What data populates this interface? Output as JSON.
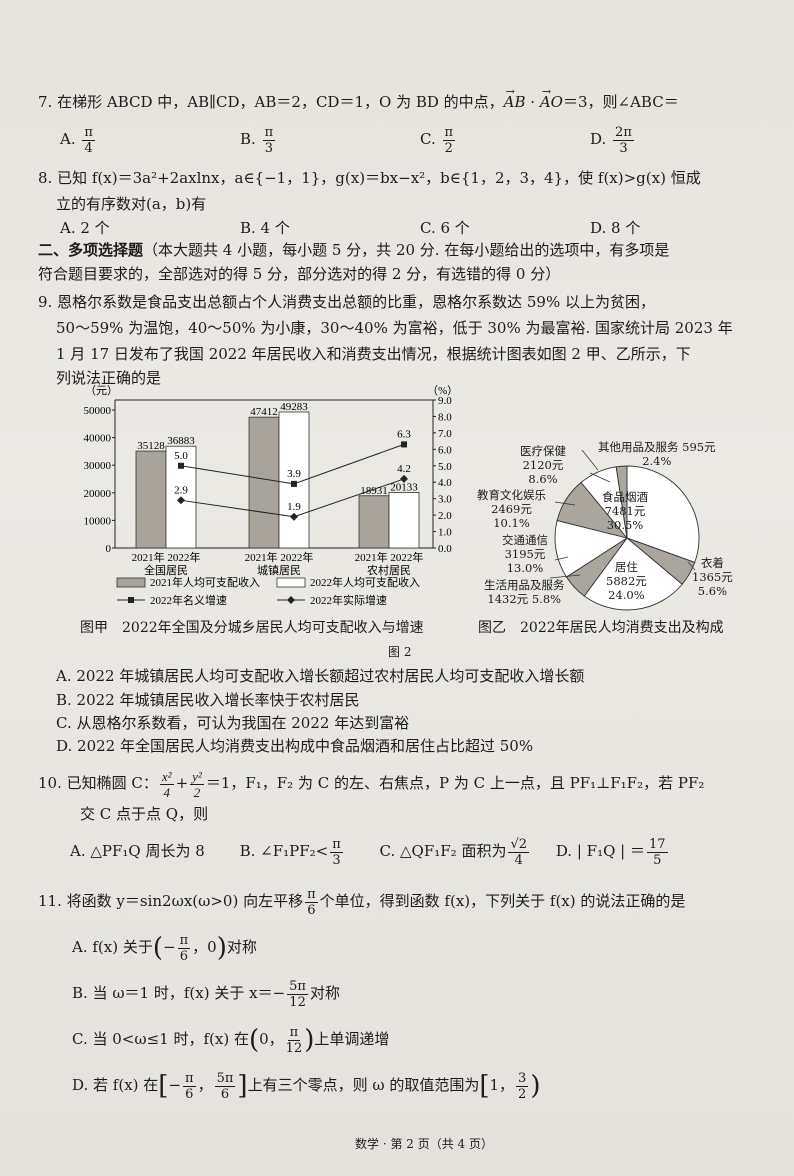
{
  "q7": {
    "number": "7.",
    "text_1": "在梯形 ABCD 中，AB∥CD，AB＝2，CD＝1，O 为 BD 的中点，",
    "vec_1": "AB",
    "dot": " · ",
    "vec_2": "AO",
    "text_2": "＝3，则∠ABC＝",
    "options": [
      {
        "label": "A.",
        "num": "π",
        "den": "4"
      },
      {
        "label": "B.",
        "num": "π",
        "den": "3"
      },
      {
        "label": "C.",
        "num": "π",
        "den": "2"
      },
      {
        "label": "D.",
        "num": "2π",
        "den": "3"
      }
    ]
  },
  "q8": {
    "number": "8.",
    "line_1": "已知 f(x)＝3a²+2axlnx，a∈{−1，1}，g(x)＝bx−x²，b∈{1，2，3，4}，使 f(x)>g(x) 恒成",
    "line_2": "立的有序数对(a，b)有",
    "options": [
      "A. 2 个",
      "B. 4 个",
      "C. 6 个",
      "D. 8 个"
    ]
  },
  "section2": {
    "title": "二、多项选择题",
    "line_1": "（本大题共 4 小题，每小题 5 分，共 20 分. 在每小题给出的选项中，有多项是",
    "line_2": "符合题目要求的，全部选对的得 5 分，部分选对的得 2 分，有选错的得 0 分）"
  },
  "q9": {
    "number": "9.",
    "lines": [
      "恩格尔系数是食品支出总额占个人消费支出总额的比重，恩格尔系数达 59% 以上为贫困，",
      "50～59% 为温饱，40～50% 为小康，30～40% 为富裕，低于 30% 为最富裕. 国家统计局 2023 年",
      "1 月 17 日发布了我国 2022 年居民收入和消费支出情况，根据统计图表如图 2 甲、乙所示，下",
      "列说法正确的是"
    ],
    "figure_label": "图 2",
    "options": [
      "A. 2022 年城镇居民人均可支配收入增长额超过农村居民人均可支配收入增长额",
      "B. 2022 年城镇居民收入增长率快于农村居民",
      "C. 从恩格尔系数看，可认为我国在 2022 年达到富裕",
      "D. 2022 年全国居民人均消费支出构成中食品烟酒和居住占比超过 50%"
    ]
  },
  "chart_data": [
    {
      "type": "bar",
      "title": "图甲　2022年全国及分城乡居民人均可支配收入与增速",
      "ylabel": "（元）",
      "y2label": "（%）",
      "ylim": [
        0,
        50000
      ],
      "yticks": [
        "0",
        "10000",
        "20000",
        "30000",
        "40000",
        "50000"
      ],
      "y2lim": [
        0,
        9
      ],
      "y2ticks": [
        "0.0",
        "1.0",
        "2.0",
        "3.0",
        "4.0",
        "5.0",
        "6.0",
        "7.0",
        "8.0",
        "9.0"
      ],
      "categories": [
        "全国居民",
        "城镇居民",
        "农村居民"
      ],
      "subcategories": [
        "2021年",
        "2022年"
      ],
      "series": [
        {
          "name": "2021年人均可支配收入",
          "kind": "bar",
          "color": "#a8a39b",
          "values": [
            35128,
            47412,
            18931
          ],
          "labels": [
            "35128",
            "47412",
            "18931"
          ]
        },
        {
          "name": "2022年人均可支配收入",
          "kind": "bar",
          "color": "#ffffff",
          "values": [
            36883,
            49283,
            20133
          ],
          "labels": [
            "36883",
            "49283",
            "20133"
          ]
        },
        {
          "name": "2022年名义增速",
          "kind": "line",
          "axis": "right",
          "marker": "square",
          "values": [
            5.0,
            3.9,
            6.3
          ],
          "labels": [
            "5.0",
            "3.9",
            "6.3"
          ]
        },
        {
          "name": "2022年实际增速",
          "kind": "line",
          "axis": "right",
          "marker": "diamond",
          "values": [
            2.9,
            1.9,
            4.2
          ],
          "labels": [
            "2.9",
            "1.9",
            "4.2"
          ]
        }
      ],
      "legend": "bottom"
    },
    {
      "type": "pie",
      "title": "图乙　2022年居民人均消费支出及构成",
      "slices": [
        {
          "name": "食品烟酒",
          "amount": "7481元",
          "value": 30.5,
          "pct": "30.5%",
          "fill": "#ffffff"
        },
        {
          "name": "衣着",
          "amount": "1365元",
          "value": 5.6,
          "pct": "5.6%",
          "fill": "#aaa59d"
        },
        {
          "name": "居住",
          "amount": "5882元",
          "value": 24.0,
          "pct": "24.0%",
          "fill": "#ffffff"
        },
        {
          "name": "生活用品及服务",
          "amount": "1432元",
          "value": 5.8,
          "pct": "5.8%",
          "fill": "#aaa59d"
        },
        {
          "name": "交通通信",
          "amount": "3195元",
          "value": 13.0,
          "pct": "13.0%",
          "fill": "#ffffff"
        },
        {
          "name": "教育文化娱乐",
          "amount": "2469元",
          "value": 10.1,
          "pct": "10.1%",
          "fill": "#aaa59d"
        },
        {
          "name": "医疗保健",
          "amount": "2120元",
          "value": 8.6,
          "pct": "8.6%",
          "fill": "#ffffff"
        },
        {
          "name": "其他用品及服务",
          "amount": "595元",
          "value": 2.4,
          "pct": "2.4%",
          "fill": "#aaa59d"
        }
      ]
    }
  ],
  "q10": {
    "number": "10.",
    "t1": "已知椭圆 C：",
    "f1n": "x²",
    "f1d": "4",
    "plus": "+",
    "f2n": "y²",
    "f2d": "2",
    "t2": "＝1，F₁，F₂ 为 C 的左、右焦点，P 为 C 上一点，且 PF₁⊥F₁F₂，若 PF₂",
    "line_2": "交 C 点于点 Q，则",
    "optA": "A. △PF₁Q 周长为 8",
    "optB": "B. ∠F₁PF₂<",
    "optB_n": "π",
    "optB_d": "3",
    "optC": "C. △QF₁F₂ 面积为",
    "optC_n": "√2",
    "optC_d": "4",
    "optD": "D. | F₁Q | ＝",
    "optD_n": "17",
    "optD_d": "5"
  },
  "q11": {
    "number": "11.",
    "t1": "将函数 y＝sin2ωx(ω>0) 向左平移",
    "n": "π",
    "d": "6",
    "t2": "个单位，得到函数 f(x)，下列关于 f(x) 的说法正确的是",
    "A1": "A. f(x) 关于",
    "A_n": "π",
    "A_d": "6",
    "A2": "对称",
    "B1": "B. 当 ω＝1 时，f(x) 关于 x＝−",
    "B_n": "5π",
    "B_d": "12",
    "B2": "对称",
    "C1": "C. 当 0<ω≤1 时，f(x) 在",
    "C_n": "π",
    "C_d": "12",
    "C2": "上单调递增",
    "D1": "D. 若 f(x) 在",
    "D_n1": "π",
    "D_d1": "6",
    "D_n2": "5π",
    "D_d2": "6",
    "D2": "上有三个零点，则 ω 的取值范围为",
    "D_n3": "3",
    "D_d3": "2"
  },
  "footer": "数学 · 第 2 页（共 4 页）"
}
